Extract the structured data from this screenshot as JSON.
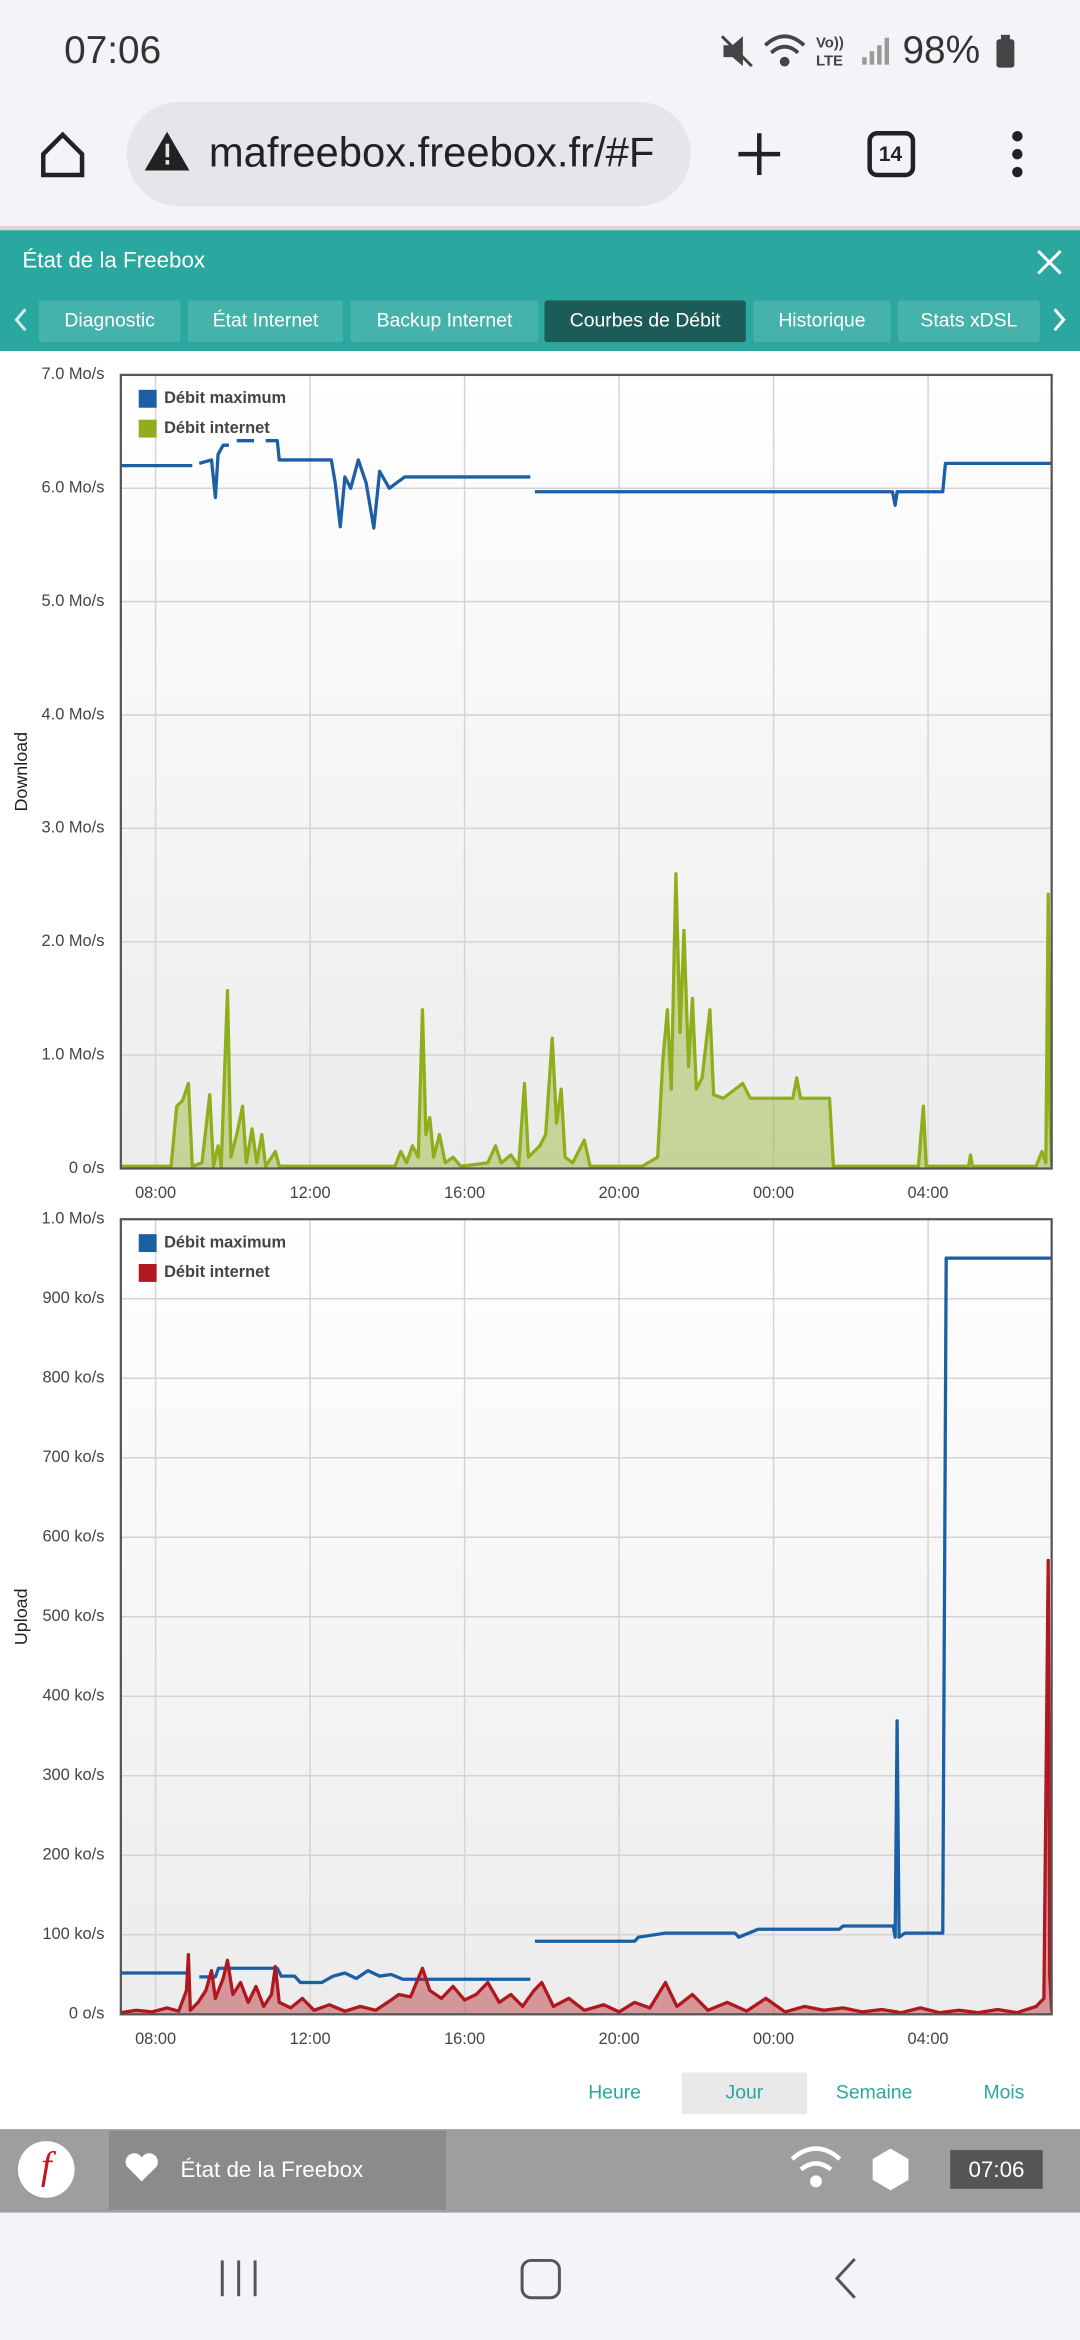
{
  "status_bar": {
    "time": "07:06",
    "volte": "Vo))",
    "lte": "LTE",
    "battery": "98%"
  },
  "browser": {
    "url": "mafreebox.freebox.fr/#F",
    "tab_count": "14"
  },
  "window": {
    "title": "État de la Freebox"
  },
  "tabs": [
    {
      "label": "Diagnostic"
    },
    {
      "label": "État Internet"
    },
    {
      "label": "Backup Internet"
    },
    {
      "label": "Courbes de Débit",
      "active": true
    },
    {
      "label": "Historique"
    },
    {
      "label": "Stats xDSL"
    }
  ],
  "chart_data": [
    {
      "type": "line",
      "ylabel": "Download",
      "grid": true,
      "legend": "upper left",
      "xlim": [
        7.1,
        31.2
      ],
      "xticks": [
        {
          "value": 8,
          "label": "08:00"
        },
        {
          "value": 12,
          "label": "12:00"
        },
        {
          "value": 16,
          "label": "16:00"
        },
        {
          "value": 20,
          "label": "20:00"
        },
        {
          "value": 24,
          "label": "00:00"
        },
        {
          "value": 28,
          "label": "04:00"
        }
      ],
      "ylim": [
        0,
        7
      ],
      "yticks": [
        {
          "value": 0,
          "label": "0 o/s"
        },
        {
          "value": 1,
          "label": "1.0 Mo/s"
        },
        {
          "value": 2,
          "label": "2.0 Mo/s"
        },
        {
          "value": 3,
          "label": "3.0 Mo/s"
        },
        {
          "value": 4,
          "label": "4.0 Mo/s"
        },
        {
          "value": 5,
          "label": "5.0 Mo/s"
        },
        {
          "value": 6,
          "label": "6.0 Mo/s"
        },
        {
          "value": 7,
          "label": "7.0 Mo/s"
        }
      ],
      "series": [
        {
          "name": "Débit maximum",
          "color": "#1b5fa5",
          "type": "line",
          "x": [
            7.1,
            8.95,
            9.05,
            9.13,
            9.45,
            9.55,
            9.62,
            9.75,
            9.9,
            10.0,
            10.1,
            10.55,
            10.7,
            10.85,
            11.15,
            11.2,
            12.55,
            12.65,
            12.78,
            12.9,
            13.05,
            13.25,
            13.45,
            13.65,
            13.8,
            14.05,
            14.25,
            14.45,
            17.7,
            17.76,
            17.82,
            27.08,
            27.15,
            27.2,
            28.38,
            28.45,
            31.2
          ],
          "values": [
            6.2,
            6.2,
            null,
            6.22,
            6.25,
            5.92,
            6.3,
            6.38,
            6.38,
            null,
            6.42,
            6.42,
            null,
            6.42,
            6.42,
            6.25,
            6.25,
            6.05,
            5.66,
            6.1,
            6.0,
            6.25,
            6.05,
            5.65,
            6.15,
            6.0,
            6.05,
            6.1,
            6.1,
            null,
            5.97,
            5.97,
            5.85,
            5.97,
            5.97,
            6.22,
            6.22
          ]
        },
        {
          "name": "Débit internet",
          "color": "#8fae1b",
          "type": "area",
          "x": [
            7.1,
            8.4,
            8.55,
            8.7,
            8.85,
            8.95,
            9.2,
            9.4,
            9.5,
            9.62,
            9.7,
            9.86,
            9.95,
            10.1,
            10.25,
            10.35,
            10.5,
            10.62,
            10.75,
            10.85,
            11.1,
            11.2,
            14.2,
            14.35,
            14.5,
            14.65,
            14.8,
            14.91,
            15.0,
            15.1,
            15.2,
            15.35,
            15.5,
            15.7,
            15.9,
            16.6,
            16.8,
            16.95,
            17.2,
            17.4,
            17.55,
            17.65,
            17.95,
            18.1,
            18.27,
            18.38,
            18.5,
            18.6,
            18.8,
            19.1,
            19.25,
            20.6,
            21.0,
            21.13,
            21.25,
            21.35,
            21.47,
            21.58,
            21.68,
            21.8,
            21.9,
            22.0,
            22.15,
            22.35,
            22.45,
            22.7,
            23.2,
            23.4,
            24.5,
            24.6,
            24.7,
            25.45,
            25.55,
            27.75,
            27.88,
            27.95,
            29.05,
            29.1,
            29.15,
            30.8,
            30.95,
            31.05,
            31.11,
            31.15,
            31.2
          ],
          "values": [
            0.02,
            0.02,
            0.55,
            0.6,
            0.75,
            0.02,
            0.05,
            0.65,
            0.02,
            0.2,
            0.02,
            1.57,
            0.1,
            0.3,
            0.55,
            0.05,
            0.35,
            0.05,
            0.3,
            0.02,
            0.15,
            0.02,
            0.02,
            0.15,
            0.05,
            0.2,
            0.1,
            1.4,
            0.3,
            0.45,
            0.1,
            0.3,
            0.05,
            0.1,
            0.02,
            0.05,
            0.2,
            0.05,
            0.12,
            0.02,
            0.75,
            0.1,
            0.2,
            0.3,
            1.15,
            0.4,
            0.7,
            0.1,
            0.05,
            0.25,
            0.02,
            0.02,
            0.1,
            0.95,
            1.4,
            0.7,
            2.6,
            1.2,
            2.1,
            0.9,
            1.5,
            0.7,
            0.8,
            1.4,
            0.65,
            0.62,
            0.75,
            0.62,
            0.62,
            0.8,
            0.62,
            0.62,
            0.02,
            0.02,
            0.55,
            0.02,
            0.02,
            0.12,
            0.02,
            0.02,
            0.15,
            0.05,
            2.42,
            0.55,
            0.02
          ]
        }
      ]
    },
    {
      "type": "line",
      "ylabel": "Upload",
      "grid": true,
      "legend": "upper left",
      "xlim": [
        7.1,
        31.2
      ],
      "xticks": [
        {
          "value": 8,
          "label": "08:00"
        },
        {
          "value": 12,
          "label": "12:00"
        },
        {
          "value": 16,
          "label": "16:00"
        },
        {
          "value": 20,
          "label": "20:00"
        },
        {
          "value": 24,
          "label": "00:00"
        },
        {
          "value": 28,
          "label": "04:00"
        }
      ],
      "ylim": [
        0,
        1000
      ],
      "yticks": [
        {
          "value": 0,
          "label": "0 o/s"
        },
        {
          "value": 100,
          "label": "100 ko/s"
        },
        {
          "value": 200,
          "label": "200 ko/s"
        },
        {
          "value": 300,
          "label": "300 ko/s"
        },
        {
          "value": 400,
          "label": "400 ko/s"
        },
        {
          "value": 500,
          "label": "500 ko/s"
        },
        {
          "value": 600,
          "label": "600 ko/s"
        },
        {
          "value": 700,
          "label": "700 ko/s"
        },
        {
          "value": 800,
          "label": "800 ko/s"
        },
        {
          "value": 900,
          "label": "900 ko/s"
        },
        {
          "value": 1000,
          "label": "1.0 Mo/s"
        }
      ],
      "series": [
        {
          "name": "Débit maximum",
          "color": "#1b5fa5",
          "type": "line",
          "x": [
            7.1,
            8.8,
            8.95,
            9.13,
            9.55,
            9.63,
            11.15,
            11.25,
            11.6,
            11.75,
            12.3,
            12.6,
            12.9,
            13.2,
            13.5,
            13.8,
            14.1,
            14.4,
            17.7,
            17.76,
            17.82,
            20.4,
            20.5,
            21.2,
            23.0,
            23.1,
            23.6,
            25.7,
            25.8,
            27.1,
            27.15,
            27.2,
            27.25,
            27.4,
            28.38,
            28.47,
            31.2
          ],
          "values": [
            52,
            52,
            null,
            47,
            47,
            58,
            58,
            48,
            48,
            40,
            40,
            48,
            52,
            45,
            55,
            48,
            50,
            44,
            44,
            null,
            92,
            92,
            97,
            102,
            102,
            97,
            107,
            107,
            111,
            111,
            97,
            369,
            97,
            102,
            102,
            951,
            951
          ]
        },
        {
          "name": "Débit internet",
          "color": "#b0171f",
          "type": "area",
          "x": [
            7.1,
            7.5,
            7.9,
            8.3,
            8.6,
            8.8,
            8.85,
            8.9,
            9.1,
            9.3,
            9.45,
            9.55,
            9.75,
            9.86,
            10.0,
            10.2,
            10.4,
            10.6,
            10.8,
            11.0,
            11.1,
            11.2,
            11.5,
            11.8,
            12.1,
            12.5,
            12.9,
            13.3,
            13.7,
            14.1,
            14.3,
            14.6,
            14.91,
            15.1,
            15.4,
            15.7,
            16.0,
            16.3,
            16.6,
            16.9,
            17.2,
            17.5,
            17.8,
            18.0,
            18.3,
            18.7,
            19.1,
            19.6,
            20.0,
            20.4,
            20.8,
            21.2,
            21.5,
            21.9,
            22.3,
            22.8,
            23.3,
            23.8,
            24.3,
            24.8,
            25.3,
            25.8,
            26.3,
            26.8,
            27.3,
            27.8,
            28.3,
            28.8,
            29.3,
            29.8,
            30.3,
            30.8,
            31.0,
            31.11,
            31.15,
            31.2
          ],
          "values": [
            2,
            5,
            3,
            8,
            4,
            30,
            75,
            5,
            15,
            30,
            55,
            20,
            45,
            68,
            25,
            40,
            15,
            35,
            10,
            25,
            60,
            15,
            8,
            20,
            5,
            12,
            4,
            10,
            5,
            18,
            25,
            22,
            58,
            30,
            20,
            35,
            18,
            25,
            40,
            15,
            25,
            10,
            30,
            40,
            10,
            20,
            5,
            12,
            3,
            15,
            8,
            40,
            10,
            25,
            5,
            15,
            4,
            20,
            3,
            10,
            5,
            8,
            3,
            6,
            2,
            8,
            2,
            5,
            2,
            6,
            2,
            10,
            20,
            571,
            50,
            5
          ]
        }
      ]
    }
  ],
  "range_buttons": [
    {
      "label": "Heure"
    },
    {
      "label": "Jour",
      "active": true
    },
    {
      "label": "Semaine"
    },
    {
      "label": "Mois"
    }
  ],
  "taskbar": {
    "logo": "f",
    "task": "État de la Freebox",
    "clock": "07:06"
  }
}
